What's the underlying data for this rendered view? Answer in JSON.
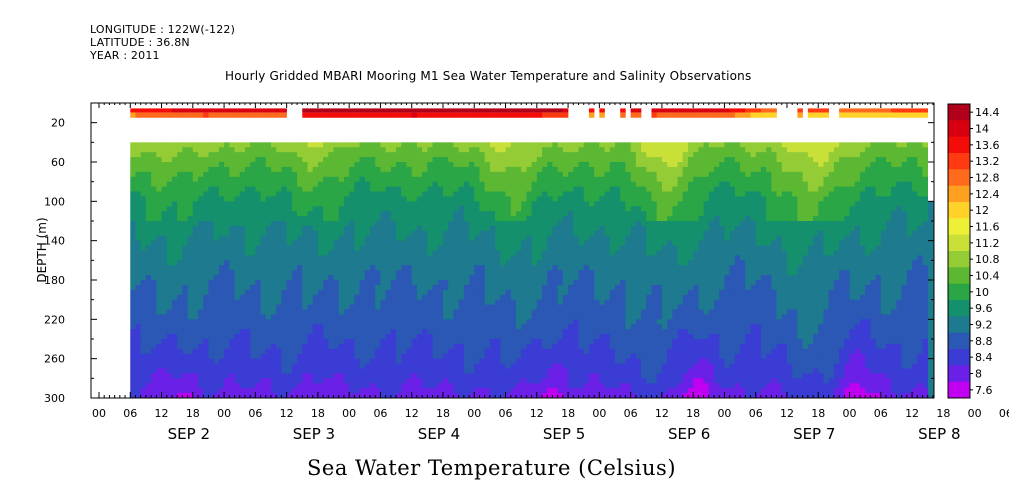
{
  "header": {
    "longitude": "LONGITUDE : 122W(-122)",
    "latitude": "LATITUDE : 36.8N",
    "year": "YEAR : 2011",
    "title": "Hourly Gridded MBARI Mooring M1 Sea Water Temperature and Salinity Observations"
  },
  "chart_data": {
    "type": "heatmap",
    "title": "Hourly Gridded MBARI Mooring M1 Sea Water Temperature and Salinity Observations",
    "xlabel": "Sea Water Temperature (Celsius)",
    "ylabel": "DEPTH (m)",
    "y_reversed": true,
    "ylim": [
      300,
      0
    ],
    "y_ticks": [
      20,
      60,
      100,
      140,
      180,
      220,
      260,
      300
    ],
    "x_range_hours": [
      0,
      156
    ],
    "x_ticks": [
      "00",
      "06",
      "12",
      "18",
      "00",
      "06",
      "12",
      "18",
      "00",
      "06",
      "12",
      "18",
      "00",
      "06",
      "12",
      "18",
      "00",
      "06",
      "12",
      "18",
      "00",
      "06",
      "12",
      "18",
      "00",
      "06",
      "12",
      "18",
      "00",
      "06",
      "12"
    ],
    "x_day_labels": [
      "SEP 2",
      "SEP 3",
      "SEP 4",
      "SEP 5",
      "SEP 6",
      "SEP 7",
      "SEP 8"
    ],
    "colorbar_ticks": [
      "14.4",
      "14",
      "13.6",
      "13.2",
      "12.8",
      "12.4",
      "12",
      "11.6",
      "11.2",
      "10.8",
      "10.4",
      "10",
      "9.6",
      "9.2",
      "8.8",
      "8.4",
      "8",
      "7.6"
    ],
    "colorbar_colors": [
      "#b0001a",
      "#d80010",
      "#f40c08",
      "#ff3a10",
      "#ff6a1c",
      "#ffa020",
      "#ffd22a",
      "#eef038",
      "#c8e038",
      "#94cc36",
      "#5cb832",
      "#2aa646",
      "#14906c",
      "#1e7a8e",
      "#2a58b4",
      "#3a3cd4",
      "#6a20e6",
      "#c000f0"
    ],
    "surface_sensor": {
      "depth": 10,
      "gaps_hours": [
        [
          0,
          6
        ],
        [
          36,
          39
        ],
        [
          90,
          94
        ],
        [
          95,
          96
        ],
        [
          97,
          100
        ],
        [
          101,
          102
        ],
        [
          104,
          106
        ],
        [
          130,
          134
        ],
        [
          135,
          136
        ],
        [
          140,
          142
        ],
        [
          159,
          169
        ],
        [
          171,
          176
        ],
        [
          185,
          187
        ],
        [
          188,
          191
        ]
      ],
      "values": [
        [
          6,
          13.2
        ],
        [
          20,
          13.6
        ],
        [
          36,
          13.4
        ],
        [
          40,
          14.2
        ],
        [
          60,
          14.4
        ],
        [
          80,
          14.2
        ],
        [
          88,
          13.8
        ],
        [
          94,
          13.0
        ],
        [
          106,
          13.6
        ],
        [
          120,
          13.4
        ],
        [
          128,
          12.4
        ],
        [
          134,
          12.8
        ],
        [
          144,
          12.4
        ],
        [
          160,
          12.8
        ],
        [
          176,
          13.0
        ],
        [
          192,
          12.9
        ]
      ]
    },
    "water_column": {
      "top_depth": 40,
      "bottom_depth": 300,
      "profile": [
        [
          40,
          10.6
        ],
        [
          60,
          10.2
        ],
        [
          80,
          9.9
        ],
        [
          100,
          9.6
        ],
        [
          140,
          9.3
        ],
        [
          180,
          9.0
        ],
        [
          220,
          8.8
        ],
        [
          260,
          8.5
        ],
        [
          280,
          8.3
        ],
        [
          300,
          8.0
        ]
      ],
      "warm_events_hours": [
        [
          14,
          0.3
        ],
        [
          40,
          0.3
        ],
        [
          79,
          0.5
        ],
        [
          108,
          0.7
        ],
        [
          136,
          0.8
        ],
        [
          174,
          0.5
        ]
      ],
      "cool_bottom_hours": [
        [
          15,
          -0.4
        ],
        [
          41,
          -0.3
        ],
        [
          86,
          -0.5
        ],
        [
          114,
          -0.6
        ],
        [
          145,
          -0.5
        ],
        [
          177,
          -0.6
        ]
      ]
    }
  }
}
